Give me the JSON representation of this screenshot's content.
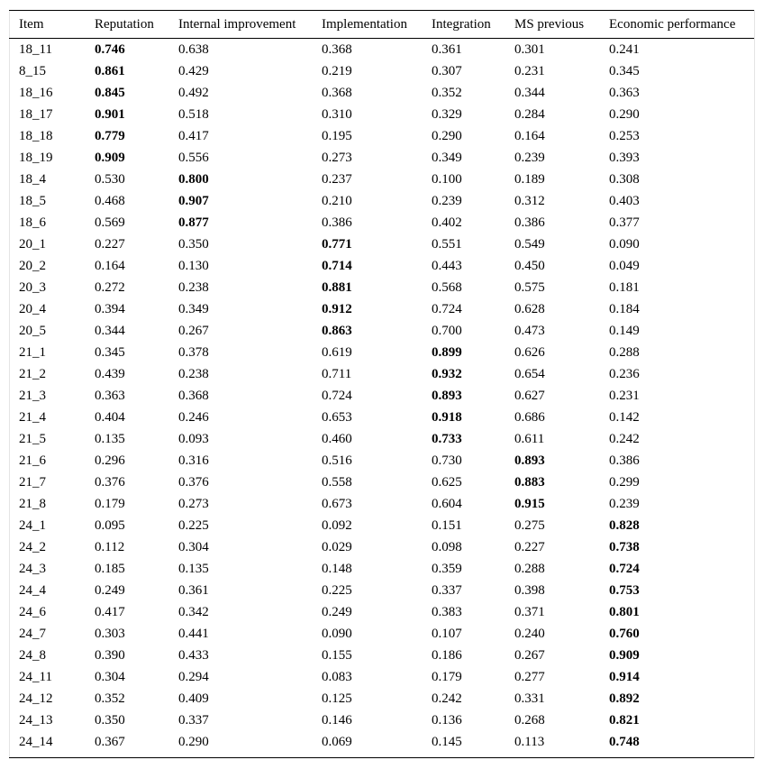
{
  "table": {
    "header": [
      "Item",
      "Reputation",
      "Internal improvement",
      "Implementation",
      "Integration",
      "MS previous",
      "Economic performance"
    ],
    "rows": [
      [
        "18_11",
        "0.746",
        "0.638",
        "0.368",
        "0.361",
        "0.301",
        "0.241"
      ],
      [
        "8_15",
        "0.861",
        "0.429",
        "0.219",
        "0.307",
        "0.231",
        "0.345"
      ],
      [
        "18_16",
        "0.845",
        "0.492",
        "0.368",
        "0.352",
        "0.344",
        "0.363"
      ],
      [
        "18_17",
        "0.901",
        "0.518",
        "0.310",
        "0.329",
        "0.284",
        "0.290"
      ],
      [
        "18_18",
        "0.779",
        "0.417",
        "0.195",
        "0.290",
        "0.164",
        "0.253"
      ],
      [
        "18_19",
        "0.909",
        "0.556",
        "0.273",
        "0.349",
        "0.239",
        "0.393"
      ],
      [
        "18_4",
        "0.530",
        "0.800",
        "0.237",
        "0.100",
        "0.189",
        "0.308"
      ],
      [
        "18_5",
        "0.468",
        "0.907",
        "0.210",
        "0.239",
        "0.312",
        "0.403"
      ],
      [
        "18_6",
        "0.569",
        "0.877",
        "0.386",
        "0.402",
        "0.386",
        "0.377"
      ],
      [
        "20_1",
        "0.227",
        "0.350",
        "0.771",
        "0.551",
        "0.549",
        "0.090"
      ],
      [
        "20_2",
        "0.164",
        "0.130",
        "0.714",
        "0.443",
        "0.450",
        "0.049"
      ],
      [
        "20_3",
        "0.272",
        "0.238",
        "0.881",
        "0.568",
        "0.575",
        "0.181"
      ],
      [
        "20_4",
        "0.394",
        "0.349",
        "0.912",
        "0.724",
        "0.628",
        "0.184"
      ],
      [
        "20_5",
        "0.344",
        "0.267",
        "0.863",
        "0.700",
        "0.473",
        "0.149"
      ],
      [
        "21_1",
        "0.345",
        "0.378",
        "0.619",
        "0.899",
        "0.626",
        "0.288"
      ],
      [
        "21_2",
        "0.439",
        "0.238",
        "0.711",
        "0.932",
        "0.654",
        "0.236"
      ],
      [
        "21_3",
        "0.363",
        "0.368",
        "0.724",
        "0.893",
        "0.627",
        "0.231"
      ],
      [
        "21_4",
        "0.404",
        "0.246",
        "0.653",
        "0.918",
        "0.686",
        "0.142"
      ],
      [
        "21_5",
        "0.135",
        "0.093",
        "0.460",
        "0.733",
        "0.611",
        "0.242"
      ],
      [
        "21_6",
        "0.296",
        "0.316",
        "0.516",
        "0.730",
        "0.893",
        "0.386"
      ],
      [
        "21_7",
        "0.376",
        "0.376",
        "0.558",
        "0.625",
        "0.883",
        "0.299"
      ],
      [
        "21_8",
        "0.179",
        "0.273",
        "0.673",
        "0.604",
        "0.915",
        "0.239"
      ],
      [
        "24_1",
        "0.095",
        "0.225",
        "0.092",
        "0.151",
        "0.275",
        "0.828"
      ],
      [
        "24_2",
        "0.112",
        "0.304",
        "0.029",
        "0.098",
        "0.227",
        "0.738"
      ],
      [
        "24_3",
        "0.185",
        "0.135",
        "0.148",
        "0.359",
        "0.288",
        "0.724"
      ],
      [
        "24_4",
        "0.249",
        "0.361",
        "0.225",
        "0.337",
        "0.398",
        "0.753"
      ],
      [
        "24_6",
        "0.417",
        "0.342",
        "0.249",
        "0.383",
        "0.371",
        "0.801"
      ],
      [
        "24_7",
        "0.303",
        "0.441",
        "0.090",
        "0.107",
        "0.240",
        "0.760"
      ],
      [
        "24_8",
        "0.390",
        "0.433",
        "0.155",
        "0.186",
        "0.267",
        "0.909"
      ],
      [
        "24_11",
        "0.304",
        "0.294",
        "0.083",
        "0.179",
        "0.277",
        "0.914"
      ],
      [
        "24_12",
        "0.352",
        "0.409",
        "0.125",
        "0.242",
        "0.331",
        "0.892"
      ],
      [
        "24_13",
        "0.350",
        "0.337",
        "0.146",
        "0.136",
        "0.268",
        "0.821"
      ],
      [
        "24_14",
        "0.367",
        "0.290",
        "0.069",
        "0.145",
        "0.113",
        "0.748"
      ]
    ],
    "bold": [
      1,
      1,
      1,
      1,
      1,
      1,
      2,
      2,
      2,
      3,
      3,
      3,
      3,
      3,
      4,
      4,
      4,
      4,
      4,
      5,
      5,
      5,
      6,
      6,
      6,
      6,
      6,
      6,
      6,
      6,
      6,
      6,
      6
    ]
  }
}
